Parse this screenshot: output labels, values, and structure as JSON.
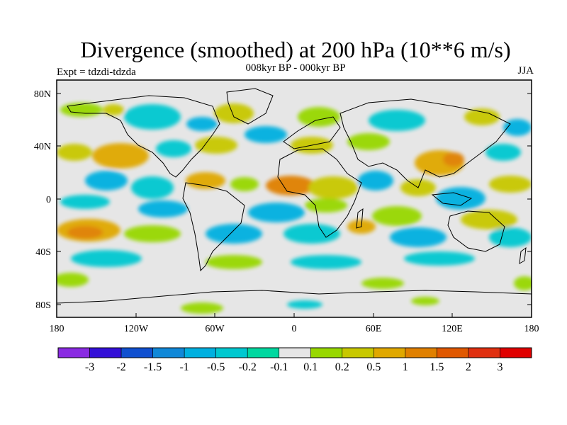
{
  "title": "Divergence (smoothed) at 200 hPa (10**6 m/s)",
  "subtitle": "008kyr BP - 000kyr BP",
  "experiment": "Expt = tdzdi-tdzda",
  "season": "JJA",
  "lat_labels": [
    "80N",
    "40N",
    "0",
    "40S",
    "80S"
  ],
  "lon_labels": [
    "180",
    "120W",
    "60W",
    "0",
    "60E",
    "120E",
    "180"
  ],
  "colorbar": {
    "colors": [
      "#8a2be2",
      "#3410d8",
      "#1050d0",
      "#1088d8",
      "#00b0e0",
      "#00c8d0",
      "#00d8a0",
      "#e6e6e6",
      "#98d800",
      "#c8c800",
      "#e0a800",
      "#e08000",
      "#e05800",
      "#e03010",
      "#e00000"
    ],
    "labels": [
      "-3",
      "-2",
      "-1.5",
      "-1",
      "-0.5",
      "-0.2",
      "-0.1",
      "0.1",
      "0.2",
      "0.5",
      "1",
      "1.5",
      "2",
      "3"
    ]
  },
  "colors": {
    "background_field": "#e6e6e6",
    "coastline": "#000000",
    "frame": "#000000"
  }
}
